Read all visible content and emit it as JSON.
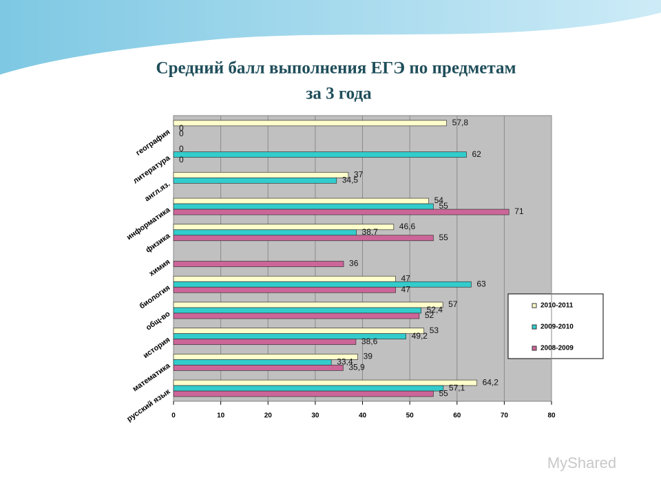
{
  "chart_data": {
    "type": "bar",
    "orientation": "horizontal",
    "title": [
      "Средний балл выполнения ЕГЭ  по предметам",
      "за 3 года"
    ],
    "categories": [
      "география",
      "литература",
      "англ.яз.",
      "информатика",
      "физика",
      "химия",
      "биология",
      "общ-во",
      "история",
      "математика",
      "русский язык"
    ],
    "series": [
      {
        "name": "2010-2011",
        "color": "#ffffcc",
        "values": [
          57.8,
          0,
          37,
          54,
          46.6,
          null,
          47,
          57,
          53,
          39,
          64.2
        ],
        "value_labels": [
          "57,8",
          "0",
          "37",
          "54",
          "46,6",
          null,
          "47",
          "57",
          "53",
          "39",
          "64,2"
        ]
      },
      {
        "name": "2009-2010",
        "color": "#33cccc",
        "values": [
          0,
          62,
          34.5,
          55,
          38.7,
          null,
          63,
          52.4,
          49.2,
          33.4,
          57.1
        ],
        "value_labels": [
          "0",
          "62",
          "34,5",
          "55",
          "38,7",
          null,
          "63",
          "52,4",
          "49,2",
          "33,4",
          "57,1"
        ]
      },
      {
        "name": "2008-2009",
        "color": "#cc6699",
        "values": [
          0,
          0,
          null,
          71,
          55,
          36,
          47,
          52,
          38.6,
          35.9,
          55
        ],
        "value_labels": [
          "0",
          "0",
          null,
          "71",
          "55",
          "36",
          "47",
          "52",
          "38,6",
          "35,9",
          "55"
        ]
      }
    ],
    "xlim": [
      0,
      80
    ],
    "xticks": [
      0,
      10,
      20,
      30,
      40,
      50,
      60,
      70,
      80
    ],
    "grid": true,
    "legend": "right"
  },
  "watermark": "MyShared"
}
